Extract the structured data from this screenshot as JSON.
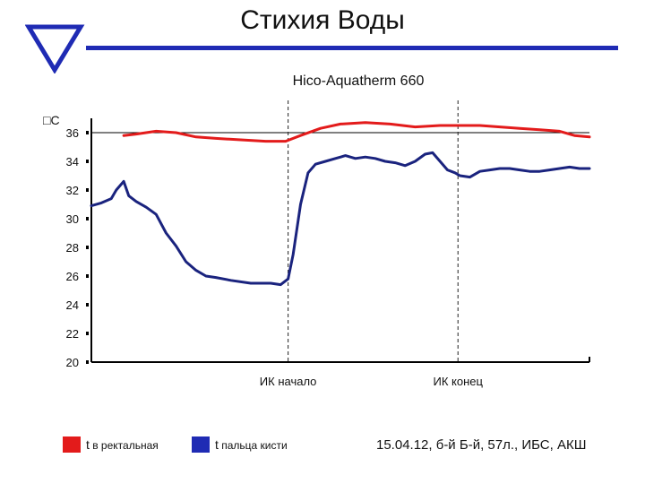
{
  "slide": {
    "title": "Стихия Воды",
    "caption": "15.04.12, б-й Б-й, 57л., ИБС, АКШ"
  },
  "colors": {
    "accent": "#1f2bb4",
    "series_red": "#e31b1b",
    "series_blue": "#1a237e"
  },
  "legend": [
    {
      "main": "t",
      "sub": " в ректальная",
      "color": "#e31b1b"
    },
    {
      "main": "t",
      "sub": " пальца кисти",
      "color": "#1f2bb4"
    }
  ],
  "chart_data": {
    "type": "line",
    "title": "Hico-Aquatherm 660",
    "ylabel": "□С",
    "xlabel": "",
    "ylim": [
      20,
      37
    ],
    "xlim": [
      0,
      100
    ],
    "yticks": [
      36,
      34,
      32,
      30,
      28,
      26,
      24,
      22,
      20
    ],
    "grid": false,
    "legend_position": "bottom",
    "annotations": [
      {
        "x": 39.5,
        "label": "ИК начало"
      },
      {
        "x": 73.6,
        "label": "ИК конец"
      }
    ],
    "series": [
      {
        "name": "t в ректальная",
        "color": "#e31b1b",
        "x": [
          6.5,
          9,
          13,
          17,
          21,
          25,
          30,
          35,
          39,
          42,
          46,
          50,
          55,
          60,
          65,
          70,
          74,
          78,
          82,
          86,
          90,
          94,
          97,
          100
        ],
        "y": [
          35.8,
          35.9,
          36.1,
          36.0,
          35.7,
          35.6,
          35.5,
          35.4,
          35.4,
          35.8,
          36.3,
          36.6,
          36.7,
          36.6,
          36.4,
          36.5,
          36.5,
          36.5,
          36.4,
          36.3,
          36.2,
          36.1,
          35.8,
          35.7
        ]
      },
      {
        "name": "t пальца кисти",
        "color": "#1a237e",
        "x": [
          0,
          2,
          4,
          5,
          6.5,
          7.5,
          9,
          11,
          13,
          15,
          17,
          19,
          21,
          23,
          25,
          28,
          32,
          36,
          38,
          39.5,
          40.5,
          42,
          43.5,
          45,
          47,
          49,
          51,
          53,
          55,
          57,
          59,
          61,
          63,
          65,
          67,
          68.5,
          70,
          71.5,
          73,
          74,
          76,
          78,
          80,
          82,
          84,
          86,
          88,
          90,
          92,
          94,
          96,
          98,
          100
        ],
        "y": [
          30.9,
          31.1,
          31.4,
          32.0,
          32.6,
          31.6,
          31.2,
          30.8,
          30.3,
          29.0,
          28.1,
          27.0,
          26.4,
          26.0,
          25.9,
          25.7,
          25.5,
          25.5,
          25.4,
          25.8,
          27.5,
          31.0,
          33.2,
          33.8,
          34.0,
          34.2,
          34.4,
          34.2,
          34.3,
          34.2,
          34.0,
          33.9,
          33.7,
          34.0,
          34.5,
          34.6,
          34.0,
          33.4,
          33.2,
          33.0,
          32.9,
          33.3,
          33.4,
          33.5,
          33.5,
          33.4,
          33.3,
          33.3,
          33.4,
          33.5,
          33.6,
          33.5,
          33.5
        ]
      }
    ]
  }
}
